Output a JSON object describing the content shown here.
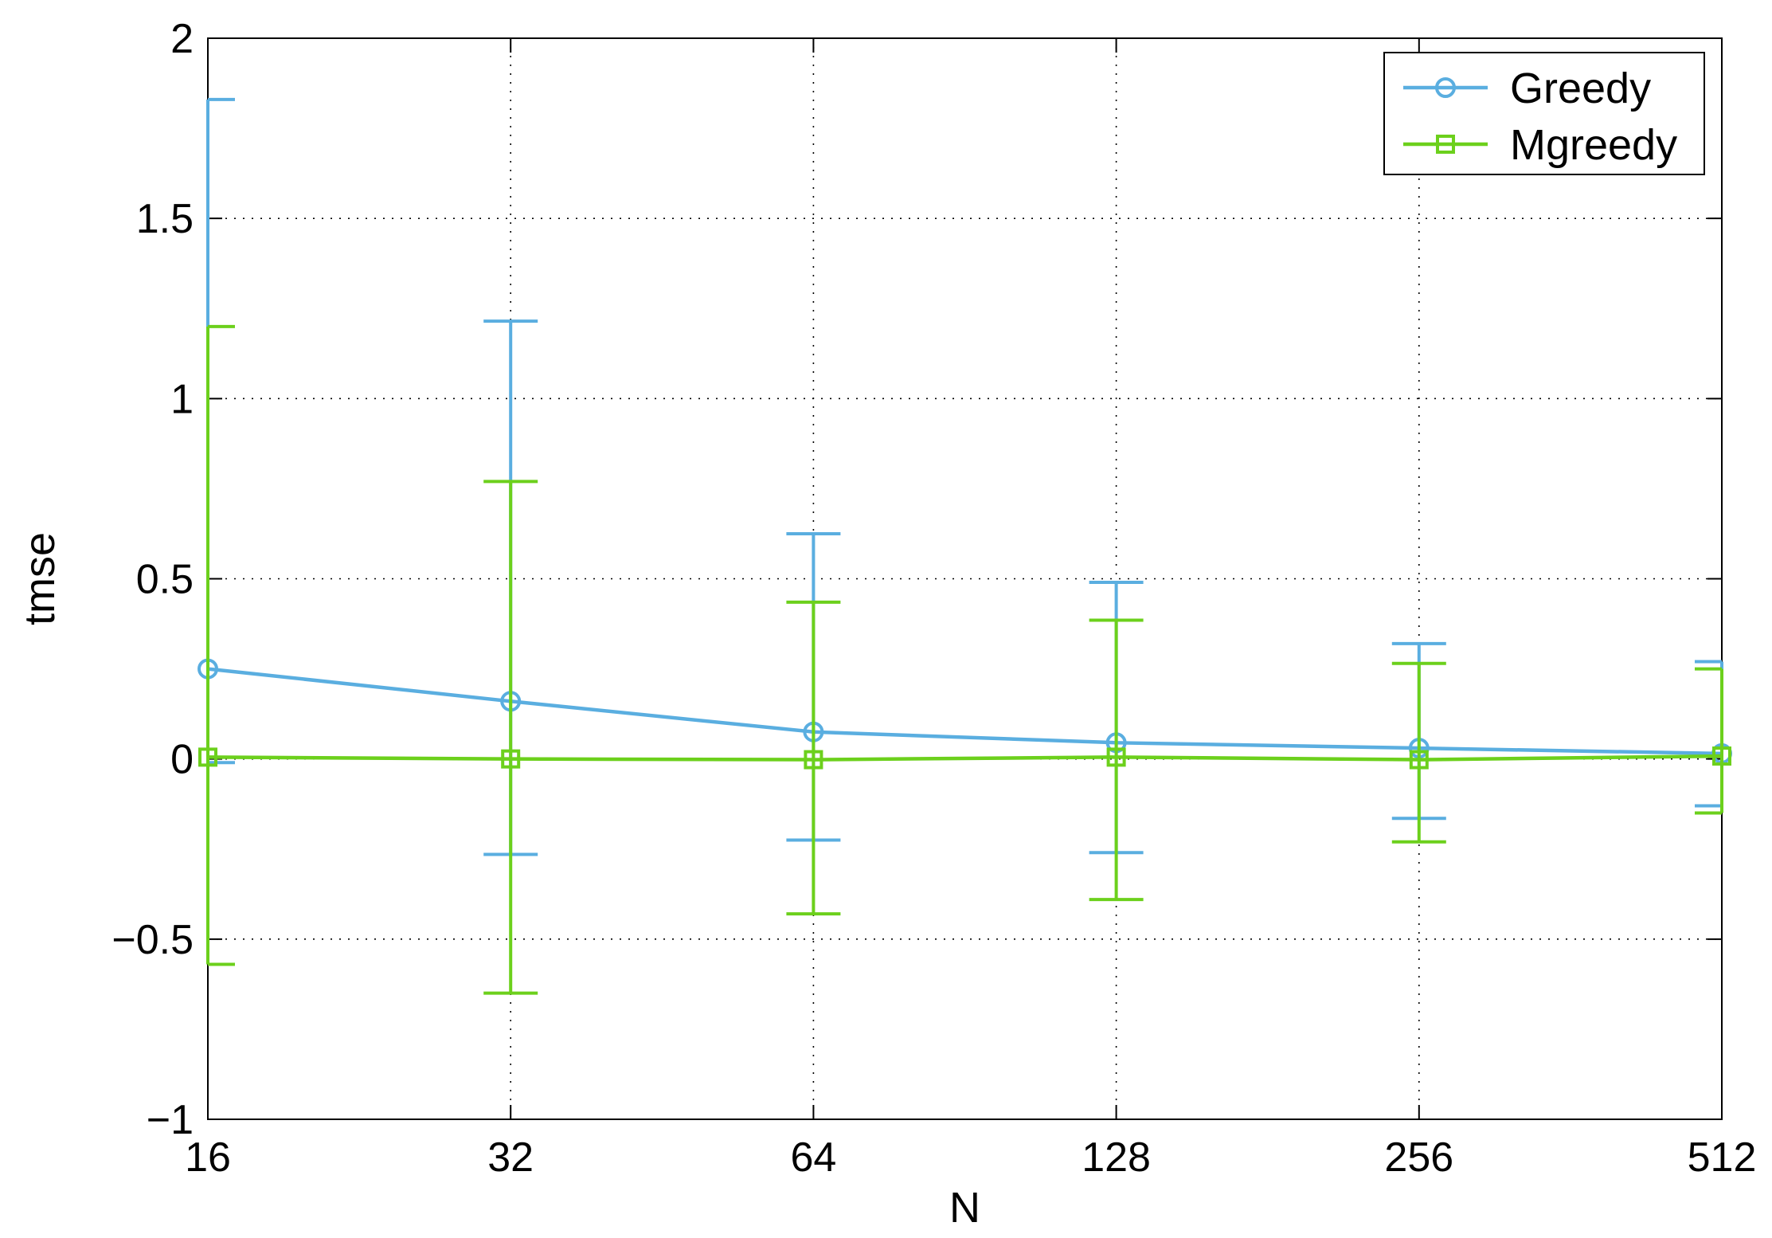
{
  "chart_data": {
    "type": "line",
    "xscale": "log2",
    "x": [
      16,
      32,
      64,
      128,
      256,
      512
    ],
    "xticks": [
      "16",
      "32",
      "64",
      "128",
      "256",
      "512"
    ],
    "yticks": [
      "2",
      "1.5",
      "1",
      "0.5",
      "0",
      "−0.5",
      "−1"
    ],
    "ytick_values": [
      2,
      1.5,
      1,
      0.5,
      0,
      -0.5,
      -1
    ],
    "xlabel": "N",
    "ylabel": "tmse",
    "xlim": [
      16,
      512
    ],
    "ylim": [
      -1,
      2
    ],
    "grid": true,
    "legend_position": "top-right",
    "series": [
      {
        "name": "Greedy",
        "color": "#5aaee0",
        "marker": "circle",
        "values": [
          0.25,
          0.16,
          0.075,
          0.045,
          0.03,
          0.015
        ],
        "upper": [
          1.83,
          1.215,
          0.625,
          0.49,
          0.32,
          0.27
        ],
        "lower": [
          -0.01,
          -0.265,
          -0.225,
          -0.26,
          -0.165,
          -0.13
        ]
      },
      {
        "name": "Mgreedy",
        "color": "#6cd01c",
        "marker": "square",
        "values": [
          0.005,
          0.0,
          -0.002,
          0.005,
          -0.002,
          0.008
        ],
        "upper": [
          1.2,
          0.77,
          0.435,
          0.385,
          0.265,
          0.25
        ],
        "lower": [
          -0.57,
          -0.65,
          -0.43,
          -0.39,
          -0.23,
          -0.15
        ]
      }
    ]
  }
}
